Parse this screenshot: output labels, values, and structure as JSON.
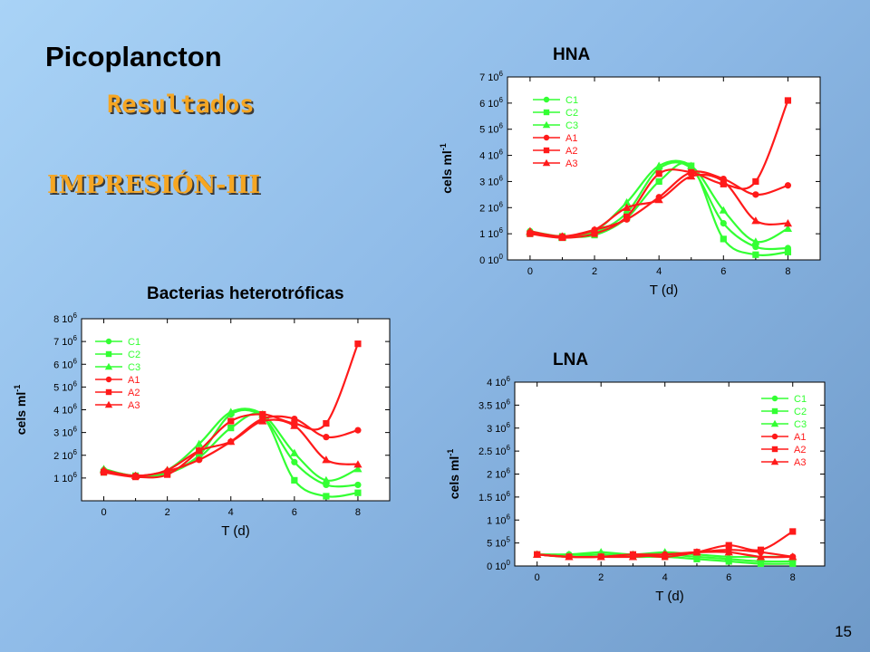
{
  "slide": {
    "title": "Picoplancton",
    "subtitle": "Resultados",
    "section": "IMPRESIÓN-III",
    "page_number": "15"
  },
  "colors": {
    "control": "#33ff33",
    "treatment": "#ff1a1a"
  },
  "chart_data": [
    {
      "type": "line",
      "title": "HNA",
      "xlabel": "T (d)",
      "ylabel": "cels ml-1",
      "xlim": [
        -0.7,
        9.0
      ],
      "ylim": [
        0,
        7000000
      ],
      "xticks": [
        "0",
        "2",
        "4",
        "6",
        "8"
      ],
      "yticks": [
        "0 10^0",
        "1 10^6",
        "2 10^6",
        "3 10^6",
        "4 10^6",
        "5 10^6",
        "6 10^6",
        "7 10^6"
      ],
      "legend_position": "top-left",
      "series": [
        {
          "name": "C1",
          "color": "#33ff33",
          "marker": "circle",
          "x": [
            0,
            1,
            2,
            3,
            4,
            5,
            6,
            7,
            8
          ],
          "y": [
            1100000,
            900000,
            1050000,
            1800000,
            3500000,
            3500000,
            1400000,
            500000,
            450000
          ]
        },
        {
          "name": "C2",
          "color": "#33ff33",
          "marker": "square",
          "x": [
            0,
            1,
            2,
            3,
            4,
            5,
            6,
            7,
            8
          ],
          "y": [
            1000000,
            900000,
            950000,
            1600000,
            3000000,
            3600000,
            800000,
            200000,
            300000
          ]
        },
        {
          "name": "C3",
          "color": "#33ff33",
          "marker": "triangle",
          "x": [
            0,
            1,
            2,
            3,
            4,
            5,
            6,
            7,
            8
          ],
          "y": [
            1050000,
            850000,
            1100000,
            2200000,
            3600000,
            3600000,
            1900000,
            700000,
            1200000
          ]
        },
        {
          "name": "A1",
          "color": "#ff1a1a",
          "marker": "circle",
          "x": [
            0,
            1,
            2,
            3,
            4,
            5,
            6,
            7,
            8
          ],
          "y": [
            1050000,
            900000,
            1150000,
            1550000,
            2400000,
            3350000,
            3100000,
            2500000,
            2850000
          ]
        },
        {
          "name": "A2",
          "color": "#ff1a1a",
          "marker": "square",
          "x": [
            0,
            1,
            2,
            3,
            4,
            5,
            6,
            7,
            8
          ],
          "y": [
            1000000,
            850000,
            1000000,
            1650000,
            3300000,
            3350000,
            2900000,
            3000000,
            6100000
          ]
        },
        {
          "name": "A3",
          "color": "#ff1a1a",
          "marker": "triangle",
          "x": [
            0,
            1,
            2,
            3,
            4,
            5,
            6,
            7,
            8
          ],
          "y": [
            1100000,
            900000,
            1150000,
            2000000,
            2300000,
            3200000,
            3000000,
            1500000,
            1400000
          ]
        }
      ]
    },
    {
      "type": "line",
      "title": "Bacterias heterotróficas",
      "xlabel": "T (d)",
      "ylabel": "cels ml-1",
      "xlim": [
        -0.7,
        9.0
      ],
      "ylim": [
        0,
        8000000
      ],
      "xticks": [
        "0",
        "2",
        "4",
        "6",
        "8"
      ],
      "yticks": [
        "1 10^6",
        "2 10^6",
        "3 10^6",
        "4 10^6",
        "5 10^6",
        "6 10^6",
        "7 10^6",
        "8 10^6"
      ],
      "legend_position": "top-left",
      "series": [
        {
          "name": "C1",
          "color": "#33ff33",
          "marker": "circle",
          "x": [
            0,
            1,
            2,
            3,
            4,
            5,
            6,
            7,
            8
          ],
          "y": [
            1350000,
            1100000,
            1250000,
            2000000,
            3800000,
            3700000,
            1700000,
            700000,
            700000
          ]
        },
        {
          "name": "C2",
          "color": "#33ff33",
          "marker": "square",
          "x": [
            0,
            1,
            2,
            3,
            4,
            5,
            6,
            7,
            8
          ],
          "y": [
            1250000,
            1100000,
            1200000,
            1900000,
            3200000,
            3700000,
            900000,
            200000,
            350000
          ]
        },
        {
          "name": "C3",
          "color": "#33ff33",
          "marker": "triangle",
          "x": [
            0,
            1,
            2,
            3,
            4,
            5,
            6,
            7,
            8
          ],
          "y": [
            1400000,
            1100000,
            1350000,
            2500000,
            3900000,
            3800000,
            2100000,
            900000,
            1400000
          ]
        },
        {
          "name": "A1",
          "color": "#ff1a1a",
          "marker": "circle",
          "x": [
            0,
            1,
            2,
            3,
            4,
            5,
            6,
            7,
            8
          ],
          "y": [
            1300000,
            1100000,
            1300000,
            1800000,
            2600000,
            3600000,
            3600000,
            2800000,
            3100000
          ]
        },
        {
          "name": "A2",
          "color": "#ff1a1a",
          "marker": "square",
          "x": [
            0,
            1,
            2,
            3,
            4,
            5,
            6,
            7,
            8
          ],
          "y": [
            1250000,
            1050000,
            1150000,
            2200000,
            3500000,
            3800000,
            3400000,
            3400000,
            6900000
          ]
        },
        {
          "name": "A3",
          "color": "#ff1a1a",
          "marker": "triangle",
          "x": [
            0,
            1,
            2,
            3,
            4,
            5,
            6,
            7,
            8
          ],
          "y": [
            1350000,
            1100000,
            1350000,
            2200000,
            2600000,
            3500000,
            3300000,
            1800000,
            1600000
          ]
        }
      ]
    },
    {
      "type": "line",
      "title": "LNA",
      "xlabel": "T (d)",
      "ylabel": "cels ml-1",
      "xlim": [
        -0.7,
        9.0
      ],
      "ylim": [
        0,
        4000000
      ],
      "xticks": [
        "0",
        "2",
        "4",
        "6",
        "8"
      ],
      "yticks": [
        "0 10^0",
        "5 10^5",
        "1 10^6",
        "1.5 10^6",
        "2 10^6",
        "2.5 10^6",
        "3 10^6",
        "3.5 10^6",
        "4 10^6"
      ],
      "legend_position": "top-right",
      "series": [
        {
          "name": "C1",
          "color": "#33ff33",
          "marker": "circle",
          "x": [
            0,
            1,
            2,
            3,
            4,
            5,
            6,
            7,
            8
          ],
          "y": [
            250000,
            250000,
            250000,
            250000,
            250000,
            200000,
            150000,
            100000,
            100000
          ]
        },
        {
          "name": "C2",
          "color": "#33ff33",
          "marker": "square",
          "x": [
            0,
            1,
            2,
            3,
            4,
            5,
            6,
            7,
            8
          ],
          "y": [
            250000,
            200000,
            250000,
            200000,
            200000,
            150000,
            100000,
            50000,
            50000
          ]
        },
        {
          "name": "C3",
          "color": "#33ff33",
          "marker": "triangle",
          "x": [
            0,
            1,
            2,
            3,
            4,
            5,
            6,
            7,
            8
          ],
          "y": [
            250000,
            250000,
            300000,
            250000,
            300000,
            250000,
            200000,
            200000,
            200000
          ]
        },
        {
          "name": "A1",
          "color": "#ff1a1a",
          "marker": "circle",
          "x": [
            0,
            1,
            2,
            3,
            4,
            5,
            6,
            7,
            8
          ],
          "y": [
            250000,
            200000,
            200000,
            250000,
            250000,
            300000,
            350000,
            300000,
            200000
          ]
        },
        {
          "name": "A2",
          "color": "#ff1a1a",
          "marker": "square",
          "x": [
            0,
            1,
            2,
            3,
            4,
            5,
            6,
            7,
            8
          ],
          "y": [
            250000,
            200000,
            200000,
            250000,
            200000,
            300000,
            450000,
            350000,
            750000
          ]
        },
        {
          "name": "A3",
          "color": "#ff1a1a",
          "marker": "triangle",
          "x": [
            0,
            1,
            2,
            3,
            4,
            5,
            6,
            7,
            8
          ],
          "y": [
            250000,
            200000,
            200000,
            200000,
            250000,
            300000,
            300000,
            200000,
            200000
          ]
        }
      ]
    }
  ]
}
